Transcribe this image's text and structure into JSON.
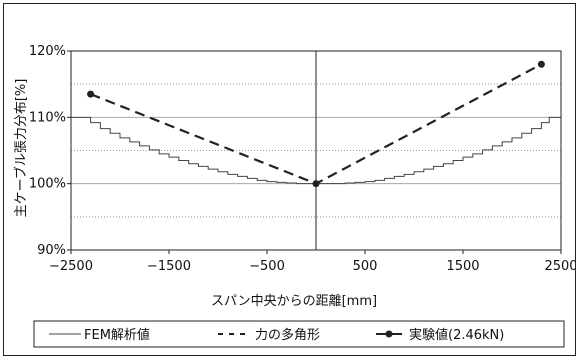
{
  "chart_data": {
    "type": "line",
    "xlabel": "スパン中央からの距離[mm]",
    "ylabel": "主ケーブル張力分布[%]",
    "xlim": [
      -2500,
      2500
    ],
    "ylim": [
      90,
      120
    ],
    "x_ticks": [
      "-2500",
      "-1500",
      "-500",
      "500",
      "1500",
      "2500"
    ],
    "y_ticks": [
      "90%",
      "100%",
      "110%",
      "120%"
    ],
    "grid": "horizontal dotted at 95, 105, 115; solid at 100, 110, 120",
    "legend_position": "bottom",
    "series": [
      {
        "name": "FEM解析値",
        "style": "thin solid stepped",
        "x": [
          -2500,
          -2380,
          -2300,
          -2200,
          -2100,
          -2000,
          -1900,
          -1800,
          -1700,
          -1600,
          -1500,
          -1400,
          -1300,
          -1200,
          -1100,
          -1000,
          -900,
          -800,
          -700,
          -600,
          -500,
          -400,
          -300,
          -200,
          -100,
          0,
          100,
          200,
          300,
          400,
          500,
          600,
          700,
          800,
          900,
          1000,
          1100,
          1200,
          1300,
          1400,
          1500,
          1600,
          1700,
          1800,
          1900,
          2000,
          2100,
          2200,
          2300,
          2380,
          2500
        ],
        "y": [
          110,
          110,
          109.2,
          108.3,
          107.6,
          106.9,
          106.3,
          105.7,
          105.1,
          104.5,
          104.0,
          103.5,
          103.0,
          102.6,
          102.2,
          101.8,
          101.4,
          101.1,
          100.8,
          100.5,
          100.3,
          100.2,
          100.1,
          100.0,
          100.0,
          100.0,
          100.0,
          100.0,
          100.1,
          100.2,
          100.3,
          100.5,
          100.8,
          101.1,
          101.4,
          101.8,
          102.2,
          102.6,
          103.0,
          103.5,
          104.0,
          104.5,
          105.1,
          105.7,
          106.3,
          106.9,
          107.6,
          108.3,
          109.2,
          110,
          110
        ]
      },
      {
        "name": "力の多角形",
        "style": "dashed",
        "x": [
          -2300,
          0,
          2300
        ],
        "y": [
          113.5,
          100,
          118
        ]
      },
      {
        "name": "実験値(2.46kN)",
        "style": "solid with markers",
        "x": [
          -2300,
          0,
          2300
        ],
        "y": [
          113.5,
          100,
          118
        ]
      }
    ]
  }
}
